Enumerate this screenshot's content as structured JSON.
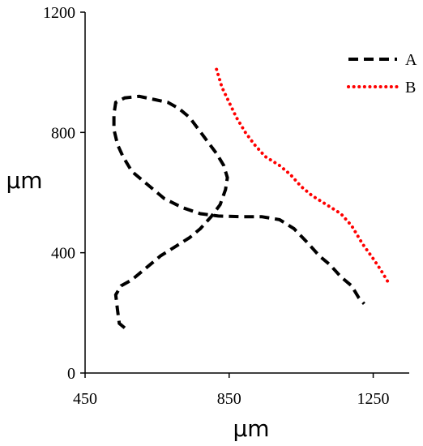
{
  "chart_data": {
    "type": "line",
    "xlabel": "µm",
    "ylabel": "µm",
    "xlim": [
      450,
      1350
    ],
    "ylim": [
      0,
      1200
    ],
    "xticks": [
      450,
      850,
      1250
    ],
    "yticks": [
      0,
      400,
      800,
      1200
    ],
    "grid": false,
    "legend_position": "top-right",
    "series": [
      {
        "name": "A",
        "color": "#000000",
        "style": "dashed",
        "points": [
          [
            560,
            150
          ],
          [
            545,
            165
          ],
          [
            540,
            210
          ],
          [
            535,
            260
          ],
          [
            550,
            290
          ],
          [
            580,
            310
          ],
          [
            620,
            350
          ],
          [
            660,
            390
          ],
          [
            700,
            420
          ],
          [
            740,
            450
          ],
          [
            770,
            480
          ],
          [
            800,
            520
          ],
          [
            825,
            560
          ],
          [
            840,
            610
          ],
          [
            845,
            650
          ],
          [
            835,
            690
          ],
          [
            815,
            730
          ],
          [
            790,
            770
          ],
          [
            765,
            810
          ],
          [
            740,
            850
          ],
          [
            710,
            880
          ],
          [
            680,
            900
          ],
          [
            640,
            910
          ],
          [
            600,
            920
          ],
          [
            560,
            915
          ],
          [
            535,
            900
          ],
          [
            530,
            860
          ],
          [
            530,
            810
          ],
          [
            540,
            760
          ],
          [
            555,
            720
          ],
          [
            580,
            670
          ],
          [
            620,
            630
          ],
          [
            670,
            580
          ],
          [
            720,
            550
          ],
          [
            770,
            530
          ],
          [
            820,
            522
          ],
          [
            880,
            520
          ],
          [
            940,
            520
          ],
          [
            990,
            510
          ],
          [
            1030,
            480
          ],
          [
            1070,
            430
          ],
          [
            1100,
            390
          ],
          [
            1130,
            360
          ],
          [
            1160,
            320
          ],
          [
            1190,
            290
          ],
          [
            1210,
            250
          ],
          [
            1225,
            230
          ]
        ]
      },
      {
        "name": "B",
        "color": "#ff0000",
        "style": "dotted",
        "points": [
          [
            815,
            1010
          ],
          [
            830,
            950
          ],
          [
            850,
            900
          ],
          [
            870,
            850
          ],
          [
            895,
            800
          ],
          [
            920,
            760
          ],
          [
            950,
            720
          ],
          [
            990,
            690
          ],
          [
            1020,
            660
          ],
          [
            1050,
            620
          ],
          [
            1080,
            590
          ],
          [
            1120,
            560
          ],
          [
            1160,
            530
          ],
          [
            1190,
            490
          ],
          [
            1220,
            430
          ],
          [
            1250,
            380
          ],
          [
            1270,
            345
          ],
          [
            1290,
            305
          ]
        ]
      }
    ]
  }
}
